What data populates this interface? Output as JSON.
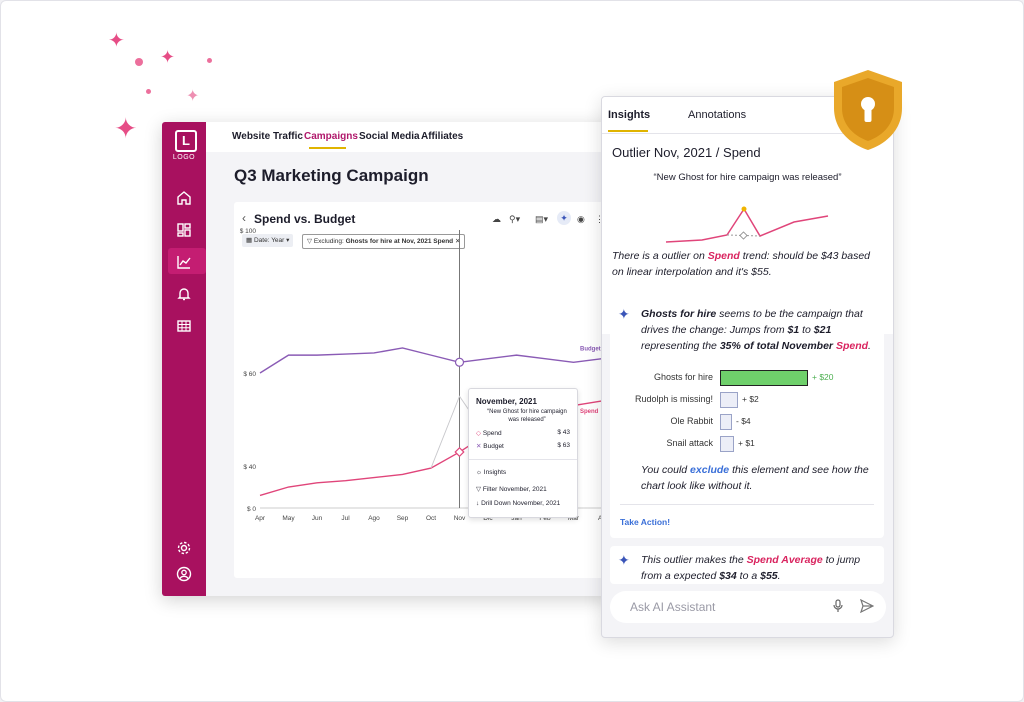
{
  "app": {
    "logo": "L",
    "logo_text": "LOGO",
    "tabs": [
      {
        "label": "Website Traffic"
      },
      {
        "label": "Campaigns"
      },
      {
        "label": "Social Media"
      },
      {
        "label": "Affiliates"
      }
    ],
    "page_title": "Q3 Marketing Campaign",
    "chart_title": "Spend vs. Budget",
    "filter_date": "Date: Year",
    "filter_excluding_prefix": "Excluding:",
    "filter_excluding_value": "Ghosts for hire at Nov, 2021 Spend"
  },
  "chart_data": {
    "type": "line",
    "title": "Spend vs. Budget",
    "categories": [
      "Apr",
      "May",
      "Jun",
      "Jul",
      "Ago",
      "Sep",
      "Oct",
      "Nov",
      "Dic",
      "Jan",
      "Feb",
      "Mar",
      "Ap"
    ],
    "y_ticks": [
      "$ 100",
      "$ 60",
      "$ 40",
      "$ 0"
    ],
    "y_tick_values": [
      100,
      60,
      40,
      0
    ],
    "ylim": [
      0,
      100
    ],
    "series": [
      {
        "name": "Budget",
        "color": "#8a5bb5",
        "values": [
          60,
          65,
          65,
          65.3,
          65.6,
          67,
          65,
          63,
          64,
          65,
          64,
          63,
          64
        ]
      },
      {
        "name": "Spend",
        "color": "#e0457a",
        "values": [
          12,
          20,
          24,
          26,
          29,
          32,
          38,
          43,
          47,
          50,
          52,
          53,
          54
        ]
      },
      {
        "values": [
          null,
          null,
          null,
          null,
          null,
          null,
          38,
          55,
          46,
          null,
          null,
          null,
          null
        ],
        "color": "#c8c8cc"
      }
    ],
    "highlight_x": "Nov",
    "end_labels": [
      "Budget",
      "Spend"
    ]
  },
  "tooltip": {
    "title": "November, 2021",
    "quote": "“New Ghost for hire campaign was released”",
    "rows": [
      {
        "label": "Spend",
        "value": "$ 43"
      },
      {
        "label": "Budget",
        "value": "$ 63"
      }
    ],
    "actions": [
      "Insights",
      "Filter November, 2021",
      "Drill Down November, 2021"
    ]
  },
  "panel": {
    "tabs": [
      "Insights",
      "Annotations"
    ],
    "outlier_title": "Outlier Nov, 2021 / Spend",
    "outlier_quote": "“New Ghost for hire campaign was released”",
    "outlier_text_1": "There is a outlier on ",
    "outlier_text_spend": "Spend",
    "outlier_text_2": " trend: should be $43 based on linear interpolation and it's $55.",
    "insight1_a": "Ghosts for hire",
    "insight1_b": " seems to be the campaign that drives the change: Jumps from ",
    "insight1_c": "$1",
    "insight1_d": " to ",
    "insight1_e": "$21",
    "insight1_f": " representing the ",
    "insight1_g": "35% of total November",
    "insight1_h": "Spend",
    "insight1_i": ".",
    "bars": [
      {
        "label": "Ghosts for hire",
        "value": "+ $20",
        "fraction": 0.84
      },
      {
        "label": "Rudolph is missing!",
        "value": "+ $2",
        "fraction": 0.16
      },
      {
        "label": "Ole Rabbit",
        "value": "- $4",
        "fraction": 0.08
      },
      {
        "label": "Snail attack",
        "value": "+ $1",
        "fraction": 0.12
      }
    ],
    "exclude_1": "You could ",
    "exclude_link": "exclude",
    "exclude_2": " this element and see how the chart look like without it.",
    "take_action": "Take Action!",
    "insight2_a": "This outlier makes the ",
    "insight2_b": "Spend Average",
    "insight2_c": " to jump from a expected ",
    "insight2_d": "$34",
    "insight2_e": " to a ",
    "insight2_f": "$55",
    "insight2_g": ".",
    "ask_placeholder": "Ask AI Assistant"
  }
}
